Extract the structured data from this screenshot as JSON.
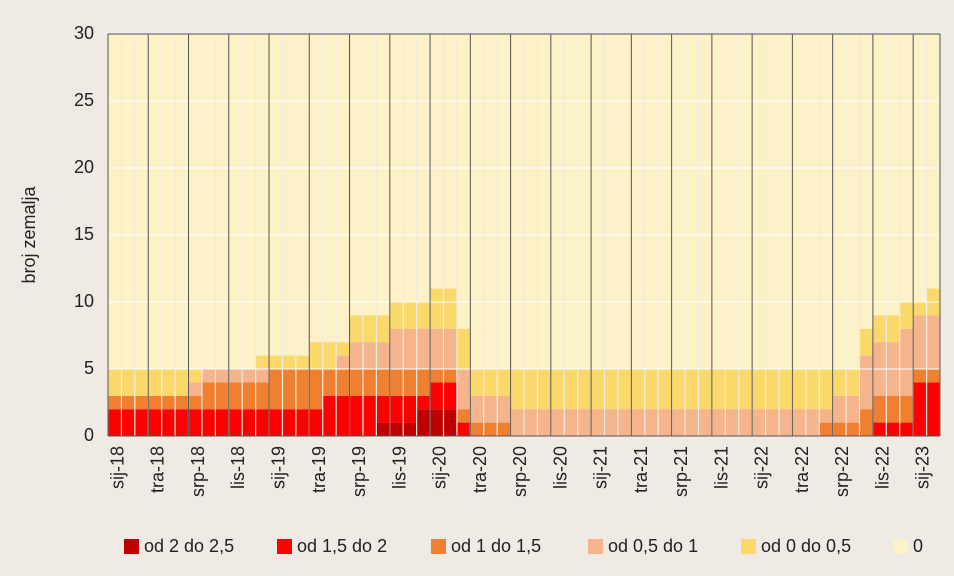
{
  "chart_data": {
    "type": "stacked_bar",
    "y_label": "broj zemalja",
    "categories": [
      "sij-18",
      null,
      null,
      "tra-18",
      null,
      null,
      "srp-18",
      null,
      null,
      "lis-18",
      null,
      null,
      "sij-19",
      null,
      null,
      "tra-19",
      null,
      null,
      "srp-19",
      null,
      null,
      "lis-19",
      null,
      null,
      "sij-20",
      null,
      null,
      "tra-20",
      null,
      null,
      "srp-20",
      null,
      null,
      "lis-20",
      null,
      null,
      "sij-21",
      null,
      null,
      "tra-21",
      null,
      null,
      "srp-21",
      null,
      null,
      "lis-21",
      null,
      null,
      "sij-22",
      null,
      null,
      "tra-22",
      null,
      null,
      "srp-22",
      null,
      null,
      "lis-22",
      null,
      null,
      "sij-23",
      null
    ],
    "series": [
      {
        "name": "od 2 do 2,5",
        "color": "#c00000",
        "values": [
          0,
          0,
          0,
          0,
          0,
          0,
          0,
          0,
          0,
          0,
          0,
          0,
          0,
          0,
          0,
          0,
          0,
          0,
          0,
          0,
          1,
          1,
          1,
          2,
          2,
          2,
          0,
          0,
          0,
          0,
          0,
          0,
          0,
          0,
          0,
          0,
          0,
          0,
          0,
          0,
          0,
          0,
          0,
          0,
          0,
          0,
          0,
          0,
          0,
          0,
          0,
          0,
          0,
          0,
          0,
          0,
          0,
          0,
          0,
          0,
          0,
          0
        ]
      },
      {
        "name": "od 1,5 do 2",
        "color": "#ff0000",
        "values": [
          2,
          2,
          2,
          2,
          2,
          2,
          2,
          2,
          2,
          2,
          2,
          2,
          2,
          2,
          2,
          2,
          3,
          3,
          3,
          3,
          2,
          2,
          2,
          1,
          2,
          2,
          1,
          0,
          0,
          0,
          0,
          0,
          0,
          0,
          0,
          0,
          0,
          0,
          0,
          0,
          0,
          0,
          0,
          0,
          0,
          0,
          0,
          0,
          0,
          0,
          0,
          0,
          0,
          0,
          0,
          0,
          0,
          1,
          1,
          1,
          4,
          4
        ]
      },
      {
        "name": "od 1 do 1,5",
        "color": "#f08030",
        "values": [
          1,
          1,
          1,
          1,
          1,
          1,
          1,
          2,
          2,
          2,
          2,
          2,
          3,
          3,
          3,
          3,
          2,
          2,
          2,
          2,
          2,
          2,
          2,
          2,
          1,
          1,
          1,
          1,
          1,
          1,
          0,
          0,
          0,
          0,
          0,
          0,
          0,
          0,
          0,
          0,
          0,
          0,
          0,
          0,
          0,
          0,
          0,
          0,
          0,
          0,
          0,
          0,
          0,
          1,
          1,
          1,
          2,
          2,
          2,
          2,
          1,
          1
        ]
      },
      {
        "name": "od 0,5 do 1",
        "color": "#f5b48c",
        "values": [
          0,
          0,
          0,
          0,
          0,
          0,
          1,
          1,
          1,
          1,
          1,
          1,
          0,
          0,
          0,
          0,
          0,
          1,
          2,
          2,
          2,
          3,
          3,
          3,
          3,
          3,
          3,
          2,
          2,
          2,
          2,
          2,
          2,
          2,
          2,
          2,
          2,
          2,
          2,
          2,
          2,
          2,
          2,
          2,
          2,
          2,
          2,
          2,
          2,
          2,
          2,
          2,
          2,
          1,
          2,
          2,
          4,
          4,
          4,
          5,
          4,
          4
        ]
      },
      {
        "name": "od 0 do 0,5",
        "color": "#fbd86a",
        "values": [
          2,
          2,
          2,
          2,
          2,
          2,
          1,
          0,
          0,
          0,
          0,
          1,
          1,
          1,
          1,
          2,
          2,
          1,
          2,
          2,
          2,
          2,
          2,
          2,
          3,
          3,
          3,
          2,
          2,
          2,
          3,
          3,
          3,
          3,
          3,
          3,
          3,
          3,
          3,
          3,
          3,
          3,
          3,
          3,
          3,
          3,
          3,
          3,
          3,
          3,
          3,
          3,
          3,
          3,
          2,
          2,
          2,
          2,
          2,
          2,
          1,
          2
        ]
      },
      {
        "name": "0",
        "color": "#fdf1c8",
        "values": [
          25,
          25,
          25,
          25,
          25,
          25,
          25,
          25,
          25,
          25,
          25,
          24,
          24,
          24,
          24,
          23,
          23,
          23,
          21,
          21,
          21,
          20,
          20,
          20,
          19,
          19,
          22,
          25,
          25,
          25,
          25,
          25,
          25,
          25,
          25,
          25,
          25,
          25,
          25,
          25,
          25,
          25,
          25,
          25,
          25,
          25,
          25,
          25,
          25,
          25,
          25,
          25,
          25,
          25,
          25,
          25,
          22,
          21,
          21,
          20,
          20,
          19
        ]
      }
    ],
    "ylim": [
      0,
      30
    ],
    "yticks": [
      0,
      5,
      10,
      15,
      20,
      25,
      30
    ],
    "grid": true,
    "legend": "bottom"
  }
}
